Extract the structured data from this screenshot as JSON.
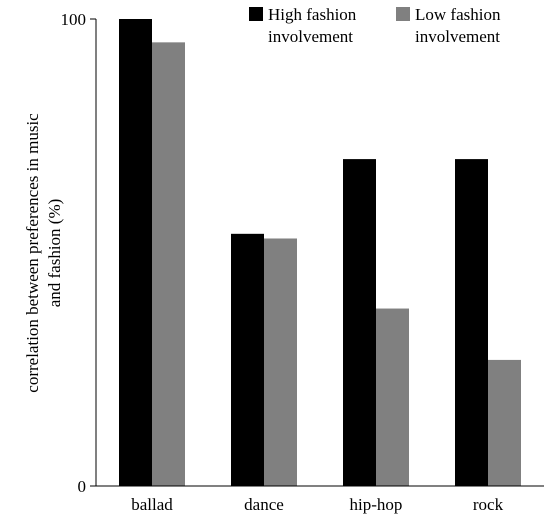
{
  "chart_data": {
    "type": "bar",
    "categories": [
      "ballad",
      "dance",
      "hip-hop",
      "rock"
    ],
    "series": [
      {
        "name": "High fashion involvement",
        "legend_lines": [
          "High fashion",
          "involvement"
        ],
        "color": "#000000",
        "values": [
          100,
          54,
          70,
          70
        ]
      },
      {
        "name": "Low fashion involvement",
        "legend_lines": [
          "Low fashion",
          "involvement"
        ],
        "color": "#808080",
        "values": [
          95,
          53,
          38,
          27
        ]
      }
    ],
    "ylabel_lines": [
      "correlation between preferences in music",
      "and fashion (%)"
    ],
    "ylim": [
      0,
      100
    ],
    "yticks": [
      {
        "value": 0,
        "label": "0"
      },
      {
        "value": 100,
        "label": "100"
      }
    ],
    "legend_position": "top-right",
    "grid": false
  }
}
